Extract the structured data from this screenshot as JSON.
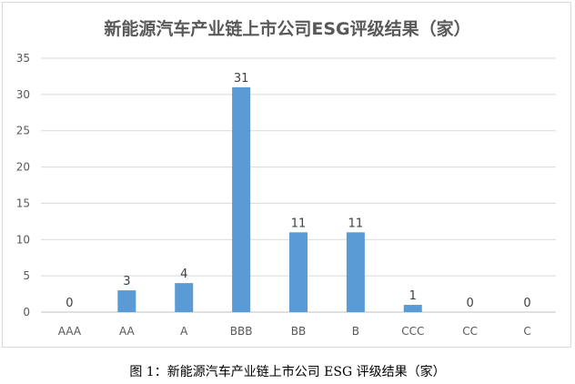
{
  "chart_data": {
    "type": "bar",
    "title": "新能源汽车产业链上市公司ESG评级结果（家）",
    "categories": [
      "AAA",
      "AA",
      "A",
      "BBB",
      "BB",
      "B",
      "CCC",
      "CC",
      "C"
    ],
    "values": [
      0,
      3,
      4,
      31,
      11,
      11,
      1,
      0,
      0
    ],
    "data_labels": [
      "0",
      "3",
      "4",
      "31",
      "11",
      "11",
      "1",
      "0",
      "0"
    ],
    "ylim": [
      0,
      35
    ],
    "yticks": [
      "0",
      "5",
      "10",
      "15",
      "20",
      "25",
      "30",
      "35"
    ],
    "grid": true,
    "bar_color": "#5b9bd5"
  },
  "caption": "图 1：新能源汽车产业链上市公司 ESG 评级结果（家）"
}
